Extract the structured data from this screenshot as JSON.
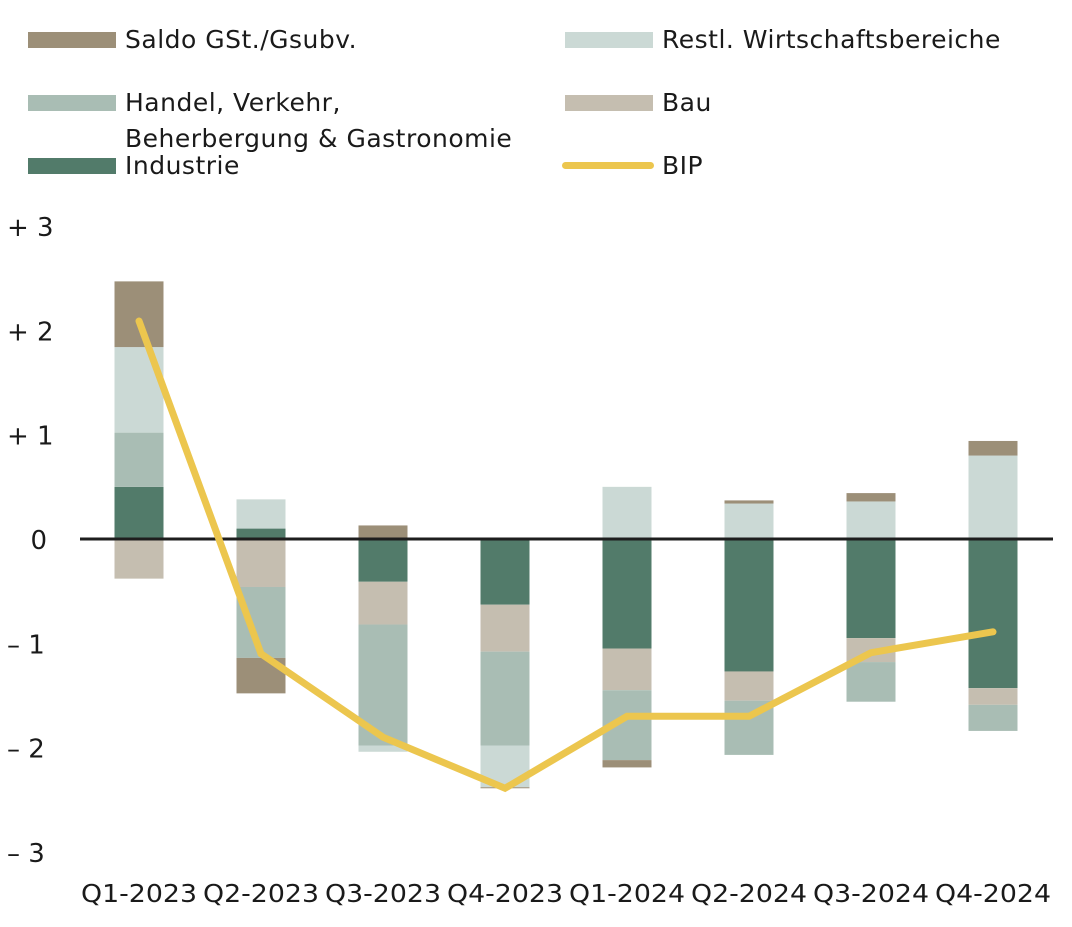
{
  "chart_data": {
    "type": "bar",
    "stacked": true,
    "title": "",
    "xlabel": "",
    "ylabel": "",
    "ylim": [
      -3,
      3
    ],
    "yticks": [
      3,
      2,
      1,
      0,
      -1,
      -2,
      -3
    ],
    "ytick_labels": [
      "+ 3",
      "+ 2",
      "+ 1",
      "0",
      "– 1",
      "– 2",
      "– 3"
    ],
    "grid": false,
    "legend_position": "top",
    "categories": [
      "Q1-2023",
      "Q2-2023",
      "Q3-2023",
      "Q4-2023",
      "Q1-2024",
      "Q2-2024",
      "Q3-2024",
      "Q4-2024"
    ],
    "series": [
      {
        "name": "Industrie",
        "type": "bar",
        "color": "#527b6a",
        "values": [
          0.5,
          0.1,
          -0.41,
          -0.63,
          -1.05,
          -1.27,
          -0.95,
          -1.43
        ]
      },
      {
        "name": "Bau",
        "type": "bar",
        "color": "#c5beb0",
        "values": [
          -0.38,
          -0.46,
          -0.41,
          -0.45,
          -0.4,
          -0.28,
          -0.23,
          -0.16
        ]
      },
      {
        "name": "Handel, Verkehr, Beherbergung & Gastronomie",
        "type": "bar",
        "color": "#a9bdb4",
        "values": [
          0.52,
          -0.68,
          -1.16,
          -0.9,
          -0.67,
          -0.52,
          -0.38,
          -0.25
        ]
      },
      {
        "name": "Restl. Wirtschaftsbereiche",
        "type": "bar",
        "color": "#cbd9d5",
        "values": [
          0.82,
          0.28,
          -0.06,
          -0.4,
          0.5,
          0.34,
          0.36,
          0.8
        ]
      },
      {
        "name": "Saldo GSt./Gsubv.",
        "type": "bar",
        "color": "#9c8f78",
        "values": [
          0.63,
          -0.34,
          0.13,
          -0.01,
          -0.07,
          0.03,
          0.08,
          0.14
        ]
      },
      {
        "name": "BIP",
        "type": "line",
        "color": "#ecc64e",
        "values": [
          2.09,
          -1.1,
          -1.9,
          -2.39,
          -1.7,
          -1.7,
          -1.09,
          -0.89
        ]
      }
    ]
  },
  "legend": [
    {
      "label": "Saldo GSt./Gsubv.",
      "color": "#9c8f78",
      "kind": "box"
    },
    {
      "label": "Restl. Wirtschaftsbereiche",
      "color": "#cbd9d5",
      "kind": "box"
    },
    {
      "label_line1": "Handel, Verkehr,",
      "label_line2": "Beherbergung & Gastronomie",
      "color": "#a9bdb4",
      "kind": "box"
    },
    {
      "label": "Bau",
      "color": "#c5beb0",
      "kind": "box"
    },
    {
      "label": "Industrie",
      "color": "#527b6a",
      "kind": "box"
    },
    {
      "label": "BIP",
      "color": "#ecc64e",
      "kind": "line"
    }
  ]
}
